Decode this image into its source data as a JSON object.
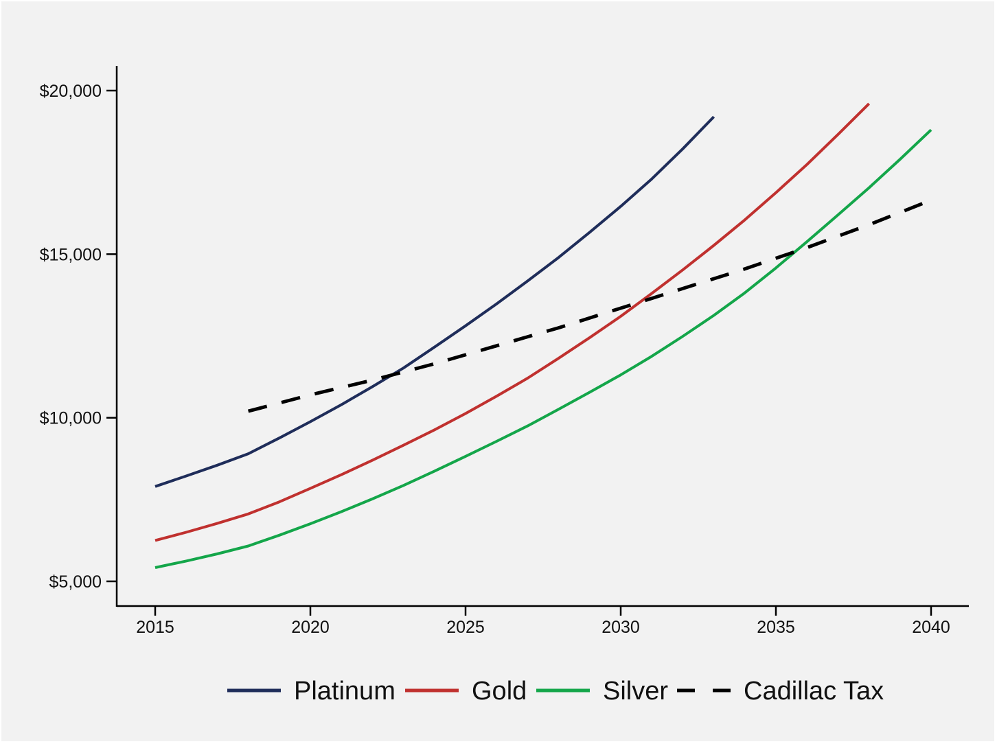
{
  "chart_data": {
    "type": "line",
    "title": "",
    "xlabel": "",
    "ylabel": "",
    "xlim": [
      2015,
      2040
    ],
    "ylim": [
      5000,
      20000
    ],
    "x_ticks": [
      2015,
      2020,
      2025,
      2030,
      2035,
      2040
    ],
    "x_tick_labels": [
      "2015",
      "2020",
      "2025",
      "2030",
      "2035",
      "2040"
    ],
    "y_ticks": [
      5000,
      10000,
      15000,
      20000
    ],
    "y_tick_labels": [
      "$5,000",
      "$10,000",
      "$15,000",
      "$20,000"
    ],
    "grid": false,
    "legend_position": "bottom",
    "series": [
      {
        "name": "Platinum",
        "color": "#1f2d5a",
        "dash": "solid",
        "x": [
          2015,
          2016,
          2017,
          2018,
          2019,
          2020,
          2021,
          2022,
          2023,
          2024,
          2025,
          2026,
          2027,
          2028,
          2029,
          2030,
          2031,
          2032,
          2033
        ],
        "y": [
          7900,
          8220,
          8550,
          8900,
          9380,
          9880,
          10400,
          10950,
          11520,
          12160,
          12810,
          13480,
          14180,
          14900,
          15670,
          16460,
          17300,
          18220,
          19200
        ]
      },
      {
        "name": "Gold",
        "color": "#c0312f",
        "dash": "solid",
        "x": [
          2015,
          2016,
          2017,
          2018,
          2019,
          2020,
          2021,
          2022,
          2023,
          2024,
          2025,
          2026,
          2027,
          2028,
          2029,
          2030,
          2031,
          2032,
          2033,
          2034,
          2035,
          2036,
          2037,
          2038
        ],
        "y": [
          6250,
          6500,
          6770,
          7060,
          7430,
          7840,
          8260,
          8700,
          9160,
          9630,
          10130,
          10660,
          11210,
          11820,
          12450,
          13100,
          13800,
          14520,
          15270,
          16050,
          16880,
          17740,
          18660,
          19600
        ]
      },
      {
        "name": "Silver",
        "color": "#14a64a",
        "dash": "solid",
        "x": [
          2015,
          2016,
          2017,
          2018,
          2019,
          2020,
          2021,
          2022,
          2023,
          2024,
          2025,
          2026,
          2027,
          2028,
          2029,
          2030,
          2031,
          2032,
          2033,
          2034,
          2035,
          2036,
          2037,
          2038,
          2039,
          2040
        ],
        "y": [
          5420,
          5620,
          5840,
          6080,
          6410,
          6760,
          7130,
          7520,
          7930,
          8370,
          8820,
          9280,
          9750,
          10260,
          10780,
          11310,
          11880,
          12490,
          13130,
          13820,
          14580,
          15380,
          16200,
          17030,
          17900,
          18800
        ]
      },
      {
        "name": "Cadillac Tax",
        "color": "#000000",
        "dash": "dashed",
        "x": [
          2018,
          2020,
          2022,
          2024,
          2026,
          2028,
          2030,
          2032,
          2034,
          2036,
          2038,
          2040
        ],
        "y": [
          10200,
          10700,
          11150,
          11650,
          12200,
          12750,
          13350,
          13950,
          14550,
          15200,
          15900,
          16650
        ]
      }
    ]
  }
}
